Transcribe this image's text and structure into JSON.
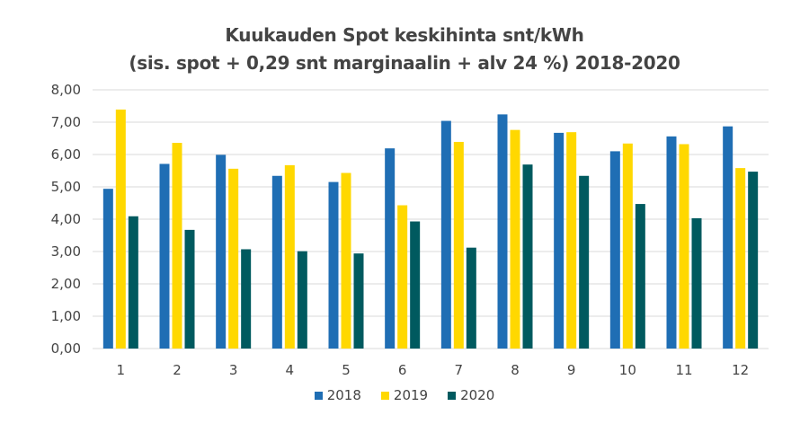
{
  "chart_data": {
    "type": "bar",
    "title": "Kuukauden Spot keskihinta snt/kWh",
    "subtitle": "(sis. spot + 0,29 snt marginaalin + alv 24 %) 2018-2020",
    "categories": [
      "1",
      "2",
      "3",
      "4",
      "5",
      "6",
      "7",
      "8",
      "9",
      "10",
      "11",
      "12"
    ],
    "series": [
      {
        "name": "2018",
        "color": "#1F6EB4",
        "values": [
          4.94,
          5.71,
          5.99,
          5.34,
          5.15,
          6.19,
          7.04,
          7.24,
          6.67,
          6.1,
          6.56,
          6.87
        ]
      },
      {
        "name": "2019",
        "color": "#FFD800",
        "values": [
          7.39,
          6.36,
          5.56,
          5.67,
          5.43,
          4.43,
          6.39,
          6.76,
          6.69,
          6.34,
          6.32,
          5.58
        ]
      },
      {
        "name": "2020",
        "color": "#005A5F",
        "values": [
          4.09,
          3.67,
          3.07,
          3.01,
          2.94,
          3.93,
          3.12,
          5.69,
          5.34,
          4.47,
          4.03,
          5.47
        ]
      }
    ],
    "yticks": [
      "0,00",
      "1,00",
      "2,00",
      "3,00",
      "4,00",
      "5,00",
      "6,00",
      "7,00",
      "8,00"
    ],
    "ylim": [
      0,
      8
    ],
    "grid": true,
    "legend": "bottom",
    "xlabel": "",
    "ylabel": ""
  }
}
